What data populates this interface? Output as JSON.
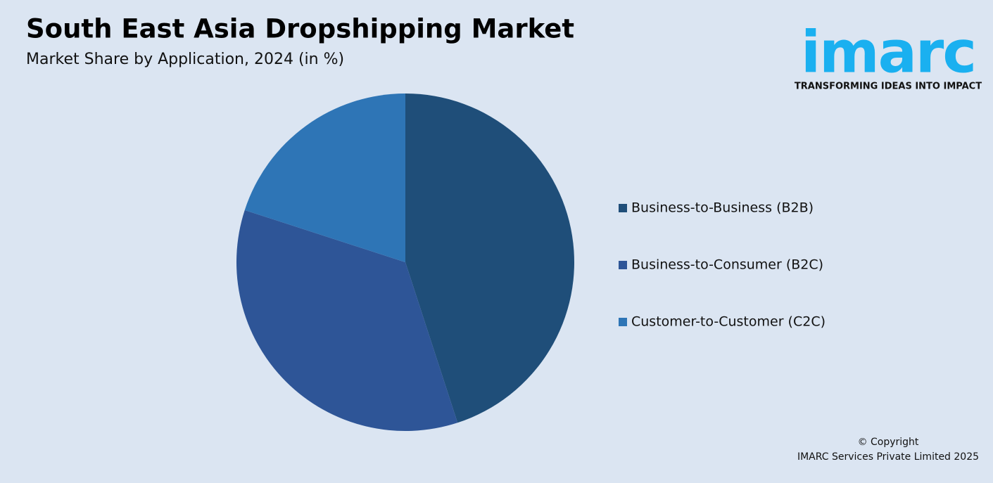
{
  "chart_data": {
    "type": "pie",
    "title": "South East Asia Dropshipping Market",
    "subtitle": "Market Share by Application, 2024 (in %)",
    "categories": [
      "Business-to-Business (B2B)",
      "Business-to-Consumer (B2C)",
      "Customer-to-Customer (C2C)"
    ],
    "values": [
      45,
      35,
      20
    ],
    "colors": [
      "#1f4e79",
      "#2e5597",
      "#2e75b6"
    ]
  },
  "brand": {
    "name": "imarc",
    "tagline": "TRANSFORMING IDEAS INTO IMPACT"
  },
  "footer": {
    "copyright": "© Copyright",
    "company": "IMARC Services Private Limited 2025"
  }
}
